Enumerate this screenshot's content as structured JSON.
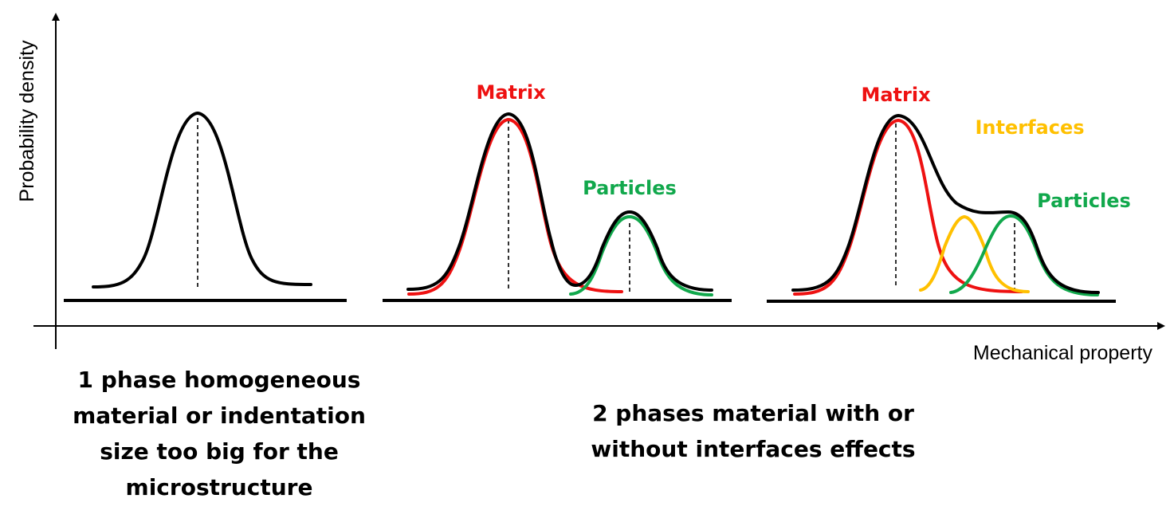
{
  "axes": {
    "y_label": "Probability density",
    "x_label": "Mechanical property"
  },
  "panels": [
    {
      "name": "single-phase",
      "curves": [
        {
          "role": "total",
          "color": "#000000"
        }
      ],
      "labels": []
    },
    {
      "name": "two-phase",
      "curves": [
        {
          "role": "matrix",
          "color": "#ee1111"
        },
        {
          "role": "particles",
          "color": "#11a84c"
        },
        {
          "role": "total",
          "color": "#000000"
        }
      ],
      "labels": [
        {
          "text": "Matrix",
          "color": "#ee1111"
        },
        {
          "text": "Particles",
          "color": "#11a84c"
        }
      ]
    },
    {
      "name": "two-phase-interfaces",
      "curves": [
        {
          "role": "matrix",
          "color": "#ee1111"
        },
        {
          "role": "interfaces",
          "color": "#ffc000"
        },
        {
          "role": "particles",
          "color": "#11a84c"
        },
        {
          "role": "total",
          "color": "#000000"
        }
      ],
      "labels": [
        {
          "text": "Matrix",
          "color": "#ee1111"
        },
        {
          "text": "Interfaces",
          "color": "#ffc000"
        },
        {
          "text": "Particles",
          "color": "#11a84c"
        }
      ]
    }
  ],
  "captions": {
    "left": [
      "1 phase homogeneous",
      "material or indentation",
      "size too big for the",
      "microstructure"
    ],
    "right": [
      "2 phases material with or",
      "without interfaces effects"
    ]
  }
}
